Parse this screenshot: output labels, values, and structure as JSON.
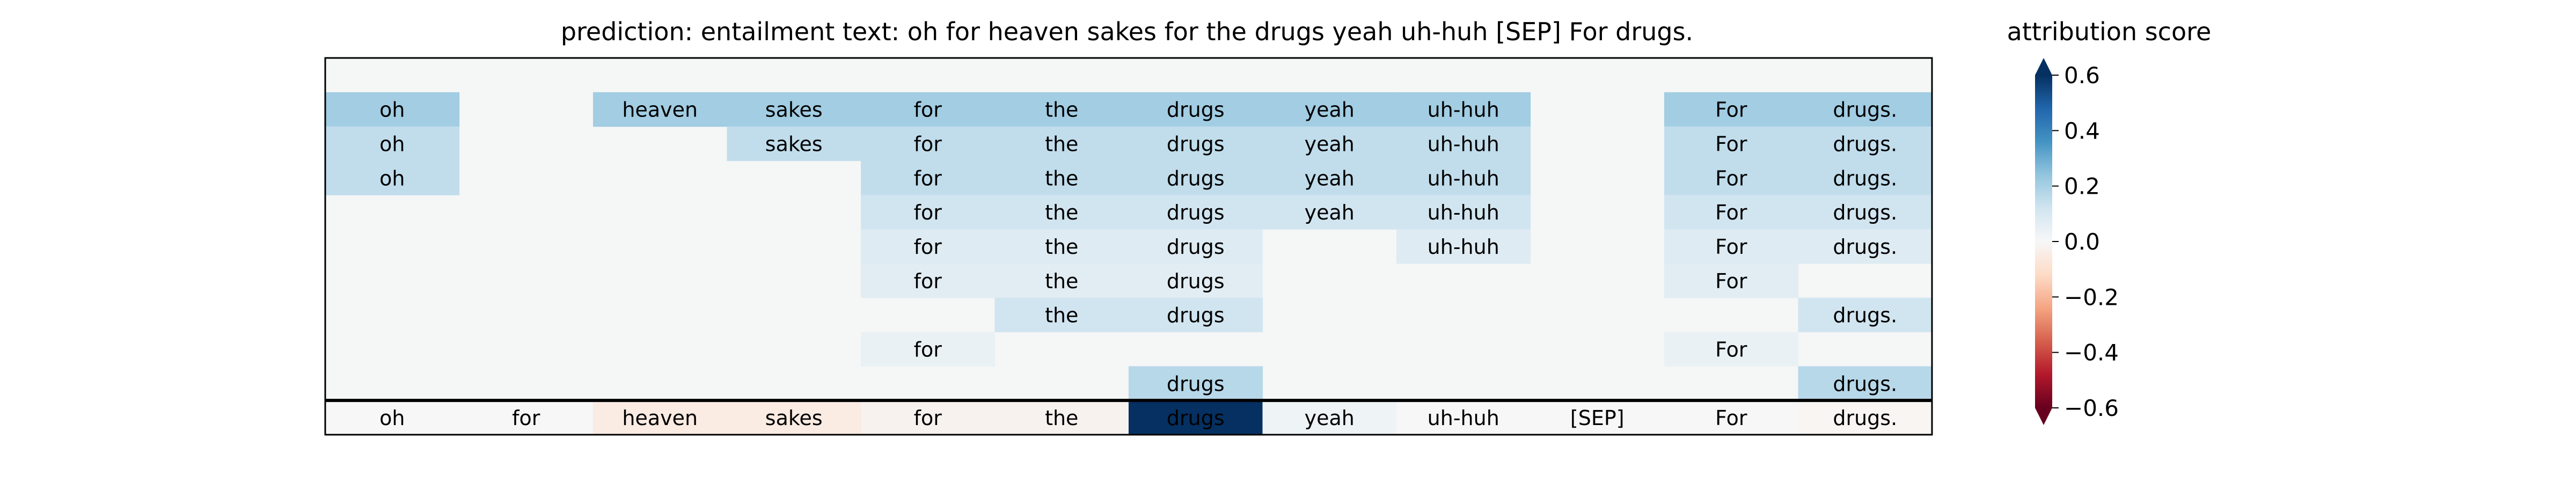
{
  "chart_data": {
    "type": "heatmap",
    "title": "prediction:  entailment     text:  oh for heaven sakes for the drugs yeah uh-huh [SEP] For drugs.",
    "colorbar": {
      "title": "attribution score",
      "range": [
        -0.6,
        0.6
      ],
      "ticks": [
        0.6,
        0.4,
        0.2,
        0.0,
        -0.2,
        -0.4,
        -0.6
      ],
      "tick_labels": [
        "0.6",
        "0.4",
        "0.2",
        "0.0",
        "−0.2",
        "−0.4",
        "−0.6"
      ],
      "colormap": "RdBu",
      "extend": "both"
    },
    "tokens": [
      "oh",
      "for",
      "heaven",
      "sakes",
      "for",
      "the",
      "drugs",
      "yeah",
      "uh-huh",
      "[SEP]",
      "For",
      "drugs."
    ],
    "rows": [
      [
        null,
        null,
        null,
        null,
        null,
        null,
        null,
        null,
        null,
        null,
        null,
        null
      ],
      [
        0.21,
        null,
        0.21,
        0.21,
        0.21,
        0.21,
        0.21,
        0.21,
        0.21,
        null,
        0.21,
        0.21
      ],
      [
        0.15,
        null,
        null,
        0.15,
        0.15,
        0.15,
        0.15,
        0.15,
        0.15,
        null,
        0.15,
        0.15
      ],
      [
        0.15,
        null,
        null,
        null,
        0.15,
        0.15,
        0.15,
        0.15,
        0.15,
        null,
        0.15,
        0.15
      ],
      [
        null,
        null,
        null,
        null,
        0.12,
        0.12,
        0.12,
        0.12,
        0.12,
        null,
        0.12,
        0.12
      ],
      [
        null,
        null,
        null,
        null,
        0.08,
        0.08,
        0.08,
        null,
        0.08,
        null,
        0.08,
        0.08
      ],
      [
        null,
        null,
        null,
        null,
        0.07,
        0.07,
        0.07,
        null,
        null,
        null,
        0.07,
        null
      ],
      [
        null,
        null,
        null,
        null,
        null,
        0.12,
        0.12,
        null,
        null,
        null,
        null,
        0.12
      ],
      [
        null,
        null,
        null,
        null,
        0.04,
        null,
        null,
        null,
        null,
        null,
        0.04,
        null
      ],
      [
        null,
        null,
        null,
        null,
        null,
        null,
        0.17,
        null,
        null,
        null,
        null,
        0.17
      ]
    ],
    "attribution_row": [
      0.0,
      0.0,
      -0.05,
      -0.05,
      -0.02,
      -0.02,
      0.62,
      0.03,
      0.0,
      0.0,
      0.0,
      -0.01
    ],
    "background_color": "#f5f6f6"
  }
}
